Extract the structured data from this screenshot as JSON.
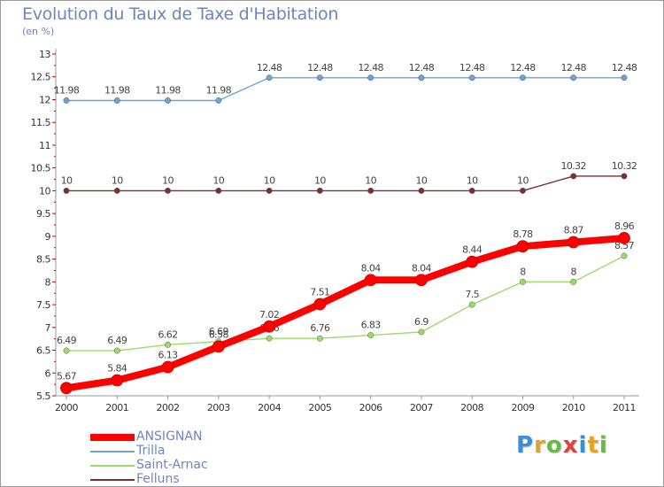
{
  "chart_data": {
    "type": "line",
    "title": "Evolution du Taux de Taxe d'Habitation",
    "subtitle": "(en %)",
    "x": [
      "2000",
      "2001",
      "2002",
      "2003",
      "2004",
      "2005",
      "2006",
      "2007",
      "2008",
      "2009",
      "2010",
      "2011"
    ],
    "ylim": [
      5.5,
      13
    ],
    "y_ticks": [
      "5.5",
      "6",
      "6.5",
      "7",
      "7.5",
      "8",
      "8.5",
      "9",
      "9.5",
      "10",
      "10.5",
      "11",
      "11.5",
      "12",
      "12.5",
      "13"
    ],
    "grid": false,
    "legend": "bottom-left",
    "series": [
      {
        "name": "ANSIGNAN",
        "color": "#ff0000",
        "values": [
          5.67,
          5.84,
          6.13,
          6.58,
          7.02,
          7.51,
          8.04,
          8.04,
          8.44,
          8.78,
          8.87,
          8.96
        ],
        "labels": [
          "5.67",
          "5.84",
          "6.13",
          "6.58",
          "7.02",
          "7.51",
          "8.04",
          "8.04",
          "8.44",
          "8.78",
          "8.87",
          "8.96"
        ]
      },
      {
        "name": "Trilla",
        "color": "#6fa3d6",
        "values": [
          11.98,
          11.98,
          11.98,
          11.98,
          12.48,
          12.48,
          12.48,
          12.48,
          12.48,
          12.48,
          12.48,
          12.48
        ],
        "labels": [
          "11.98",
          "11.98",
          "11.98",
          "11.98",
          "12.48",
          "12.48",
          "12.48",
          "12.48",
          "12.48",
          "12.48",
          "12.48",
          "12.48"
        ]
      },
      {
        "name": "Saint-Arnac",
        "color": "#99dd66",
        "values": [
          6.49,
          6.49,
          6.62,
          6.69,
          6.76,
          6.76,
          6.83,
          6.9,
          7.5,
          8,
          8,
          8.57
        ],
        "labels": [
          "6.49",
          "6.49",
          "6.62",
          "6.69",
          "6.76",
          "6.76",
          "6.83",
          "6.9",
          "7.5",
          "8",
          "8",
          "8.57"
        ]
      },
      {
        "name": "Felluns",
        "color": "#7a3030",
        "values": [
          10,
          10,
          10,
          10,
          10,
          10,
          10,
          10,
          10,
          10,
          10.32,
          10.32
        ],
        "labels": [
          "10",
          "10",
          "10",
          "10",
          "10",
          "10",
          "10",
          "10",
          "10",
          "10",
          "10.32",
          "10.32"
        ]
      }
    ]
  },
  "logo": {
    "letters": [
      "P",
      "r",
      "o",
      "x",
      "i",
      "t",
      "i"
    ],
    "colors": [
      "#3a8fd6",
      "#e8a020",
      "#66bb44",
      "#e04040",
      "#3a8fd6",
      "#e8a020",
      "#66bb44"
    ]
  }
}
